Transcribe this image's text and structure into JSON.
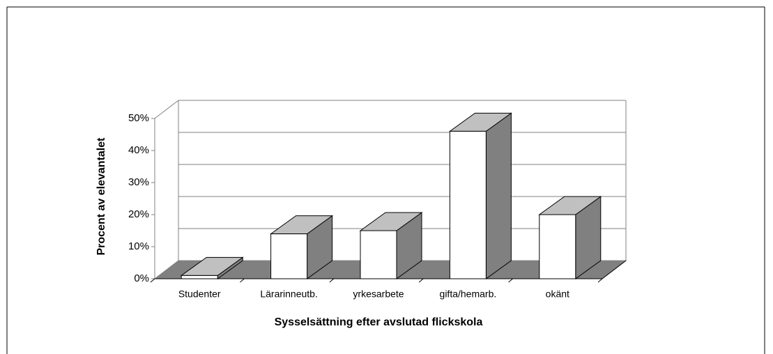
{
  "chart_data": {
    "type": "bar3d",
    "x_label": "Sysselsättning efter avslutad flickskola",
    "y_label": "Procent av elevantalet",
    "categories": [
      "Studenter",
      "Lärarinneutb.",
      "yrkesarbete",
      "gifta/hemarb.",
      "okänt"
    ],
    "values": [
      1,
      14,
      15,
      46,
      20
    ],
    "color": "#ffffff",
    "ylim": [
      0,
      50
    ],
    "yticks": [
      {
        "value": 0,
        "label": "0%"
      },
      {
        "value": 10,
        "label": "10%"
      },
      {
        "value": 20,
        "label": "20%"
      },
      {
        "value": 30,
        "label": "30%"
      },
      {
        "value": 40,
        "label": "40%"
      },
      {
        "value": 50,
        "label": "50%"
      }
    ],
    "grid": true
  }
}
